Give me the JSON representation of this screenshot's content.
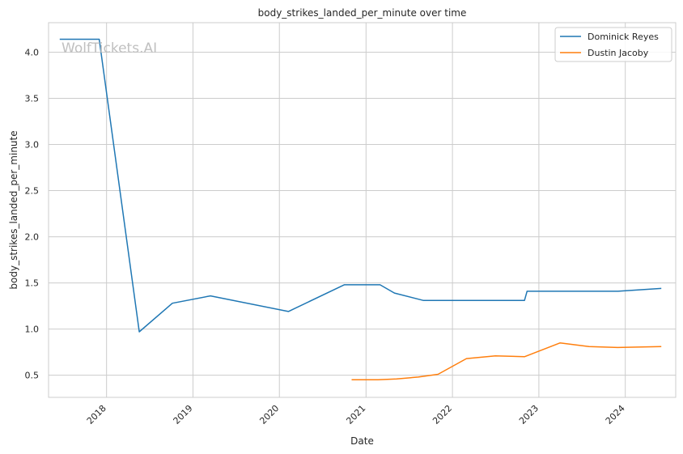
{
  "chart_data": {
    "type": "line",
    "title": "body_strikes_landed_per_minute over time",
    "xlabel": "Date",
    "ylabel": "body_strikes_landed_per_minute",
    "watermark": "WolfTickets.AI",
    "x_ticks": [
      "2018",
      "2019",
      "2020",
      "2021",
      "2022",
      "2023",
      "2024"
    ],
    "y_ticks": [
      "0.5",
      "1.0",
      "1.5",
      "2.0",
      "2.5",
      "3.0",
      "3.5",
      "4.0"
    ],
    "xlim": [
      "2017-05-01",
      "2024-08-01"
    ],
    "ylim": [
      0.26,
      4.32
    ],
    "grid": true,
    "legend": "top-right",
    "series": [
      {
        "name": "Dominick Reyes",
        "color": "#1f77b4",
        "points": [
          [
            "2017-06-17",
            4.14
          ],
          [
            "2017-12-01",
            4.14
          ],
          [
            "2018-05-19",
            0.97
          ],
          [
            "2018-10-06",
            1.28
          ],
          [
            "2019-03-16",
            1.36
          ],
          [
            "2020-02-08",
            1.19
          ],
          [
            "2020-10-01",
            1.48
          ],
          [
            "2021-03-01",
            1.48
          ],
          [
            "2021-05-01",
            1.39
          ],
          [
            "2021-09-01",
            1.31
          ],
          [
            "2022-11-01",
            1.31
          ],
          [
            "2022-11-12",
            1.41
          ],
          [
            "2023-12-01",
            1.41
          ],
          [
            "2024-06-01",
            1.44
          ]
        ]
      },
      {
        "name": "Dustin Jacoby",
        "color": "#ff7f0e",
        "points": [
          [
            "2020-11-01",
            0.45
          ],
          [
            "2021-02-20",
            0.45
          ],
          [
            "2021-05-10",
            0.46
          ],
          [
            "2021-08-10",
            0.48
          ],
          [
            "2021-11-01",
            0.51
          ],
          [
            "2022-03-01",
            0.68
          ],
          [
            "2022-07-01",
            0.71
          ],
          [
            "2022-11-01",
            0.7
          ],
          [
            "2023-04-01",
            0.85
          ],
          [
            "2023-08-01",
            0.81
          ],
          [
            "2023-12-01",
            0.8
          ],
          [
            "2024-06-01",
            0.81
          ]
        ]
      }
    ]
  }
}
